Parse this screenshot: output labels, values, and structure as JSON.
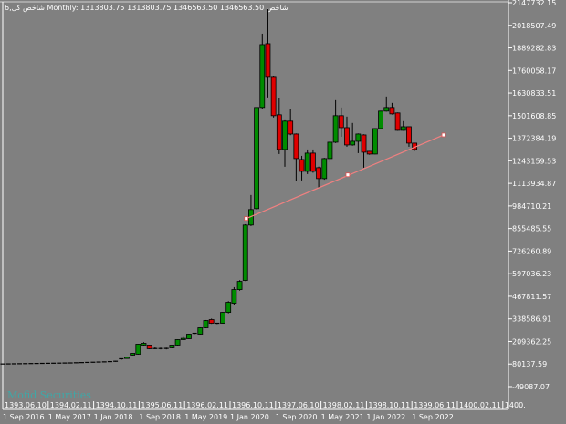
{
  "header": {
    "title": "6,شاخص کل Monthly:  1313803.75  1313803.75  1346563.50  1346563.50   شاخص"
  },
  "watermark": "Mofid Securities",
  "colors": {
    "background": "#808080",
    "bull": "#008c00",
    "bear": "#e00000",
    "wick": "#000000",
    "axis": "#ffffff",
    "trendline": "#f08080"
  },
  "chart_data": {
    "type": "candlestick",
    "timeframe": "Monthly",
    "ylim": [
      -49087.07,
      2147732.15
    ],
    "y_ticks": [
      "2147732.15",
      "2018507.49",
      "1889282.83",
      "1760058.17",
      "1630833.51",
      "1501608.85",
      "1372384.19",
      "1243159.53",
      "1113934.87",
      "984710.21",
      "855485.55",
      "726260.89",
      "597036.23",
      "467811.57",
      "338586.91",
      "209362.25",
      "80137.59",
      "-49087.07"
    ],
    "x_ticks_persian": [
      "1393.06.10",
      "1394.02.11",
      "1394.10.11",
      "1395.06.11",
      "1396.02.11",
      "1396.10.11",
      "1397.06.10",
      "1398.02.11",
      "1398.10.11",
      "1399.06.11",
      "1400.02.11",
      "1400."
    ],
    "x_ticks_gregorian": [
      "1 Sep 2016",
      "1 May 2017",
      "1 Jan 2018",
      "1 Sep 2018",
      "1 May 2019",
      "1 Jan 2020",
      "1 Sep 2020",
      "1 May 2021",
      "1 Jan 2022",
      "1 Sep 2022"
    ],
    "candles": [
      [
        "2016-09",
        80000,
        81500,
        79000,
        80500
      ],
      [
        "2016-10",
        80500,
        82000,
        79500,
        81000
      ],
      [
        "2016-11",
        81000,
        82500,
        80000,
        81500
      ],
      [
        "2016-12",
        81500,
        83000,
        80500,
        82000
      ],
      [
        "2017-01",
        82000,
        83500,
        81000,
        82500
      ],
      [
        "2017-02",
        82500,
        84000,
        81500,
        83000
      ],
      [
        "2017-03",
        83000,
        84500,
        82000,
        83500
      ],
      [
        "2017-04",
        83500,
        85000,
        82500,
        84000
      ],
      [
        "2017-05",
        84000,
        85500,
        83000,
        84500
      ],
      [
        "2017-06",
        84500,
        86000,
        83500,
        85000
      ],
      [
        "2017-07",
        85000,
        86500,
        84000,
        85500
      ],
      [
        "2017-08",
        85500,
        87000,
        84500,
        86000
      ],
      [
        "2017-09",
        86000,
        87500,
        85000,
        86500
      ],
      [
        "2017-10",
        86500,
        88500,
        85500,
        87500
      ],
      [
        "2017-11",
        87500,
        89500,
        86500,
        88500
      ],
      [
        "2017-12",
        88500,
        90500,
        87500,
        89500
      ],
      [
        "2018-01",
        89500,
        91500,
        88500,
        90500
      ],
      [
        "2018-02",
        90500,
        92500,
        89500,
        91500
      ],
      [
        "2018-03",
        91500,
        93500,
        90500,
        92500
      ],
      [
        "2018-04",
        92500,
        95000,
        91500,
        94000
      ],
      [
        "2018-05",
        94700,
        98000,
        93000,
        96000
      ],
      [
        "2018-06",
        105000,
        112000,
        103000,
        110300
      ],
      [
        "2018-07",
        112000,
        122000,
        110000,
        120700
      ],
      [
        "2018-08",
        131100,
        143000,
        129000,
        141600
      ],
      [
        "2018-09",
        136400,
        195000,
        134000,
        193700
      ],
      [
        "2018-10",
        188500,
        205000,
        186000,
        198900
      ],
      [
        "2018-11",
        188500,
        190000,
        165000,
        167700
      ],
      [
        "2018-12",
        167700,
        175000,
        165000,
        169000
      ],
      [
        "2019-01",
        168000,
        174000,
        164000,
        169000
      ],
      [
        "2019-02",
        168000,
        174000,
        164000,
        169500
      ],
      [
        "2019-03",
        172900,
        190000,
        170000,
        188500
      ],
      [
        "2019-04",
        188500,
        222000,
        186000,
        219800
      ],
      [
        "2019-05",
        219800,
        235000,
        217000,
        227000
      ],
      [
        "2019-06",
        225000,
        253000,
        223000,
        251000
      ],
      [
        "2019-07",
        256000,
        258000,
        252000,
        254000
      ],
      [
        "2019-08",
        251000,
        290000,
        249000,
        287500
      ],
      [
        "2019-09",
        287500,
        332000,
        285000,
        329200
      ],
      [
        "2019-10",
        334400,
        340000,
        310000,
        313500
      ],
      [
        "2019-11",
        313500,
        316000,
        309000,
        312000
      ],
      [
        "2019-12",
        313500,
        378000,
        311000,
        375900
      ],
      [
        "2020-01",
        375900,
        440000,
        370000,
        433500
      ],
      [
        "2020-02",
        428200,
        520000,
        420000,
        506400
      ],
      [
        "2020-03",
        506400,
        560000,
        500000,
        553300
      ],
      [
        "2020-04",
        558600,
        880000,
        555000,
        875500
      ],
      [
        "2020-05",
        875500,
        1047500,
        870000,
        964100
      ],
      [
        "2020-06",
        969300,
        1550000,
        965000,
        1548500
      ],
      [
        "2020-07",
        1548500,
        1970568,
        1540000,
        1908040
      ],
      [
        "2020-08",
        1913250,
        2111257,
        1605800,
        1725665
      ],
      [
        "2020-09",
        1725665,
        1730000,
        1491200,
        1501600
      ],
      [
        "2020-10",
        1506800,
        1600600,
        1282000,
        1308000
      ],
      [
        "2020-11",
        1308000,
        1475000,
        1209000,
        1470400
      ],
      [
        "2020-12",
        1470400,
        1538000,
        1390000,
        1396600
      ],
      [
        "2021-01",
        1396600,
        1400000,
        1125600,
        1255900
      ],
      [
        "2021-02",
        1250700,
        1271500,
        1130800,
        1182900
      ],
      [
        "2021-03",
        1182900,
        1308000,
        1167300,
        1287200
      ],
      [
        "2021-04",
        1287200,
        1308000,
        1175000,
        1182900
      ],
      [
        "2021-05",
        1203800,
        1210000,
        1089100,
        1141300
      ],
      [
        "2021-06",
        1141300,
        1260000,
        1135000,
        1255900
      ],
      [
        "2021-07",
        1255900,
        1355000,
        1235100,
        1349700
      ],
      [
        "2021-08",
        1349700,
        1590200,
        1345000,
        1501600
      ],
      [
        "2021-09",
        1501600,
        1548500,
        1381000,
        1433100
      ],
      [
        "2021-10",
        1433100,
        1496400,
        1323700,
        1334100
      ],
      [
        "2021-11",
        1334100,
        1459900,
        1330000,
        1354900
      ],
      [
        "2021-12",
        1354900,
        1400000,
        1287200,
        1396600
      ],
      [
        "2022-01",
        1391400,
        1395000,
        1203800,
        1292400
      ],
      [
        "2022-02",
        1297600,
        1300000,
        1278000,
        1282000
      ],
      [
        "2022-03",
        1282000,
        1430000,
        1280000,
        1427900
      ],
      [
        "2022-04",
        1427900,
        1530000,
        1425000,
        1527700
      ],
      [
        "2022-05",
        1527700,
        1611030,
        1525000,
        1548500
      ],
      [
        "2022-06",
        1548500,
        1574600,
        1508000,
        1512000
      ],
      [
        "2022-07",
        1517200,
        1520000,
        1415000,
        1417600
      ],
      [
        "2022-08",
        1417600,
        1470400,
        1415000,
        1438300
      ],
      [
        "2022-09",
        1438300,
        1440000,
        1323700,
        1344500
      ],
      [
        "2022-10",
        1344500,
        1346563.5,
        1300000,
        1308000
      ]
    ],
    "trendline": [
      {
        "date": "2020-04",
        "value": 912800
      },
      {
        "date": "2021-10",
        "value": 1162900
      },
      {
        "date": "2023-03",
        "value": 1391400
      }
    ]
  }
}
